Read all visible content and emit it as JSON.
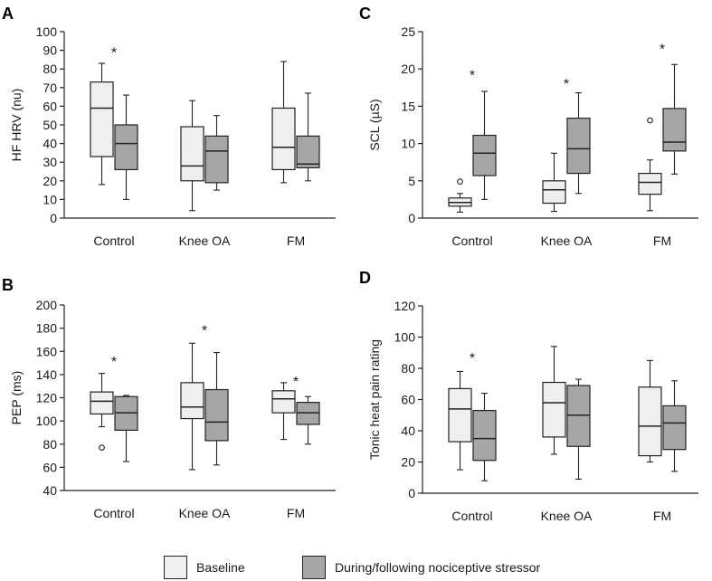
{
  "legend": {
    "baseline_label": "Baseline",
    "stressor_label": "During/following nociceptive stressor",
    "baseline_color": "#efefef",
    "stressor_color": "#a6a6a6"
  },
  "chart_data": [
    {
      "panel": "A",
      "type": "boxplot",
      "ylabel": "HF HRV (nu)",
      "ylim": [
        0,
        100
      ],
      "yticks": [
        0,
        10,
        20,
        30,
        40,
        50,
        60,
        70,
        80,
        90,
        100
      ],
      "categories": [
        "Control",
        "Knee OA",
        "FM"
      ],
      "series": [
        {
          "name": "Baseline",
          "boxes": [
            {
              "min": 18,
              "q1": 33,
              "median": 59,
              "q3": 73,
              "max": 83,
              "outliers": []
            },
            {
              "min": 4,
              "q1": 20,
              "median": 28,
              "q3": 49,
              "max": 63,
              "outliers": []
            },
            {
              "min": 19,
              "q1": 26,
              "median": 38,
              "q3": 59,
              "max": 84,
              "outliers": []
            }
          ]
        },
        {
          "name": "During/following nociceptive stressor",
          "boxes": [
            {
              "min": 10,
              "q1": 26,
              "median": 40,
              "q3": 50,
              "max": 66,
              "outliers": []
            },
            {
              "min": 15,
              "q1": 19,
              "median": 36,
              "q3": 44,
              "max": 55,
              "outliers": []
            },
            {
              "min": 20,
              "q1": 27,
              "median": 29,
              "q3": 44,
              "max": 67,
              "outliers": []
            }
          ]
        }
      ],
      "annotations": [
        {
          "text": "*",
          "category": "Control",
          "y": 90
        }
      ]
    },
    {
      "panel": "B",
      "type": "boxplot",
      "ylabel": "PEP (ms)",
      "ylim": [
        40,
        200
      ],
      "yticks": [
        40,
        60,
        80,
        100,
        120,
        140,
        160,
        180,
        200
      ],
      "categories": [
        "Control",
        "Knee OA",
        "FM"
      ],
      "series": [
        {
          "name": "Baseline",
          "boxes": [
            {
              "min": 95,
              "q1": 106,
              "median": 117,
              "q3": 125,
              "max": 141,
              "outliers": [
                77
              ]
            },
            {
              "min": 58,
              "q1": 102,
              "median": 112,
              "q3": 133,
              "max": 167,
              "outliers": []
            },
            {
              "min": 84,
              "q1": 107,
              "median": 119,
              "q3": 126,
              "max": 133,
              "outliers": []
            }
          ]
        },
        {
          "name": "During/following nociceptive stressor",
          "boxes": [
            {
              "min": 65,
              "q1": 92,
              "median": 107,
              "q3": 121,
              "max": 122,
              "outliers": []
            },
            {
              "min": 62,
              "q1": 83,
              "median": 99,
              "q3": 127,
              "max": 159,
              "outliers": []
            },
            {
              "min": 80,
              "q1": 97,
              "median": 107,
              "q3": 116,
              "max": 121,
              "outliers": []
            }
          ]
        }
      ],
      "annotations": [
        {
          "text": "*",
          "category": "Control",
          "y": 153
        },
        {
          "text": "*",
          "category": "Knee OA",
          "y": 180
        },
        {
          "text": "*",
          "category": "FM",
          "y": 136
        }
      ]
    },
    {
      "panel": "C",
      "type": "boxplot",
      "ylabel": "SCL (µS)",
      "ylim": [
        0,
        25
      ],
      "yticks": [
        0,
        5,
        10,
        15,
        20,
        25
      ],
      "categories": [
        "Control",
        "Knee OA",
        "FM"
      ],
      "series": [
        {
          "name": "Baseline",
          "boxes": [
            {
              "min": 0.8,
              "q1": 1.6,
              "median": 2.1,
              "q3": 2.7,
              "max": 3.3,
              "outliers": [
                4.9
              ]
            },
            {
              "min": 0.9,
              "q1": 2.0,
              "median": 3.8,
              "q3": 5.0,
              "max": 8.7,
              "outliers": []
            },
            {
              "min": 1.0,
              "q1": 3.2,
              "median": 4.8,
              "q3": 6.0,
              "max": 7.8,
              "outliers": [
                13.1
              ]
            }
          ]
        },
        {
          "name": "During/following nociceptive stressor",
          "boxes": [
            {
              "min": 2.5,
              "q1": 5.7,
              "median": 8.7,
              "q3": 11.1,
              "max": 17.0,
              "outliers": []
            },
            {
              "min": 3.3,
              "q1": 6.0,
              "median": 9.3,
              "q3": 13.4,
              "max": 16.8,
              "outliers": []
            },
            {
              "min": 5.9,
              "q1": 9.0,
              "median": 10.2,
              "q3": 14.7,
              "max": 20.6,
              "outliers": []
            }
          ]
        }
      ],
      "annotations": [
        {
          "text": "*",
          "category": "Control",
          "y": 19.5
        },
        {
          "text": "*",
          "category": "Knee OA",
          "y": 18.3
        },
        {
          "text": "*",
          "category": "FM",
          "y": 23.0
        }
      ]
    },
    {
      "panel": "D",
      "type": "boxplot",
      "ylabel": "Tonic heat pain rating",
      "ylim": [
        0,
        120
      ],
      "yticks": [
        0,
        20,
        40,
        60,
        80,
        100,
        120
      ],
      "categories": [
        "Control",
        "Knee OA",
        "FM"
      ],
      "series": [
        {
          "name": "Baseline",
          "boxes": [
            {
              "min": 15,
              "q1": 33,
              "median": 54,
              "q3": 67,
              "max": 78,
              "outliers": []
            },
            {
              "min": 25,
              "q1": 36,
              "median": 58,
              "q3": 71,
              "max": 94,
              "outliers": []
            },
            {
              "min": 20,
              "q1": 24,
              "median": 43,
              "q3": 68,
              "max": 85,
              "outliers": []
            }
          ]
        },
        {
          "name": "During/following nociceptive stressor",
          "boxes": [
            {
              "min": 8,
              "q1": 21,
              "median": 35,
              "q3": 53,
              "max": 64,
              "outliers": []
            },
            {
              "min": 9,
              "q1": 30,
              "median": 50,
              "q3": 69,
              "max": 73,
              "outliers": []
            },
            {
              "min": 14,
              "q1": 28,
              "median": 45,
              "q3": 56,
              "max": 72,
              "outliers": []
            }
          ]
        }
      ],
      "annotations": [
        {
          "text": "*",
          "category": "Control",
          "y": 88
        }
      ]
    }
  ]
}
